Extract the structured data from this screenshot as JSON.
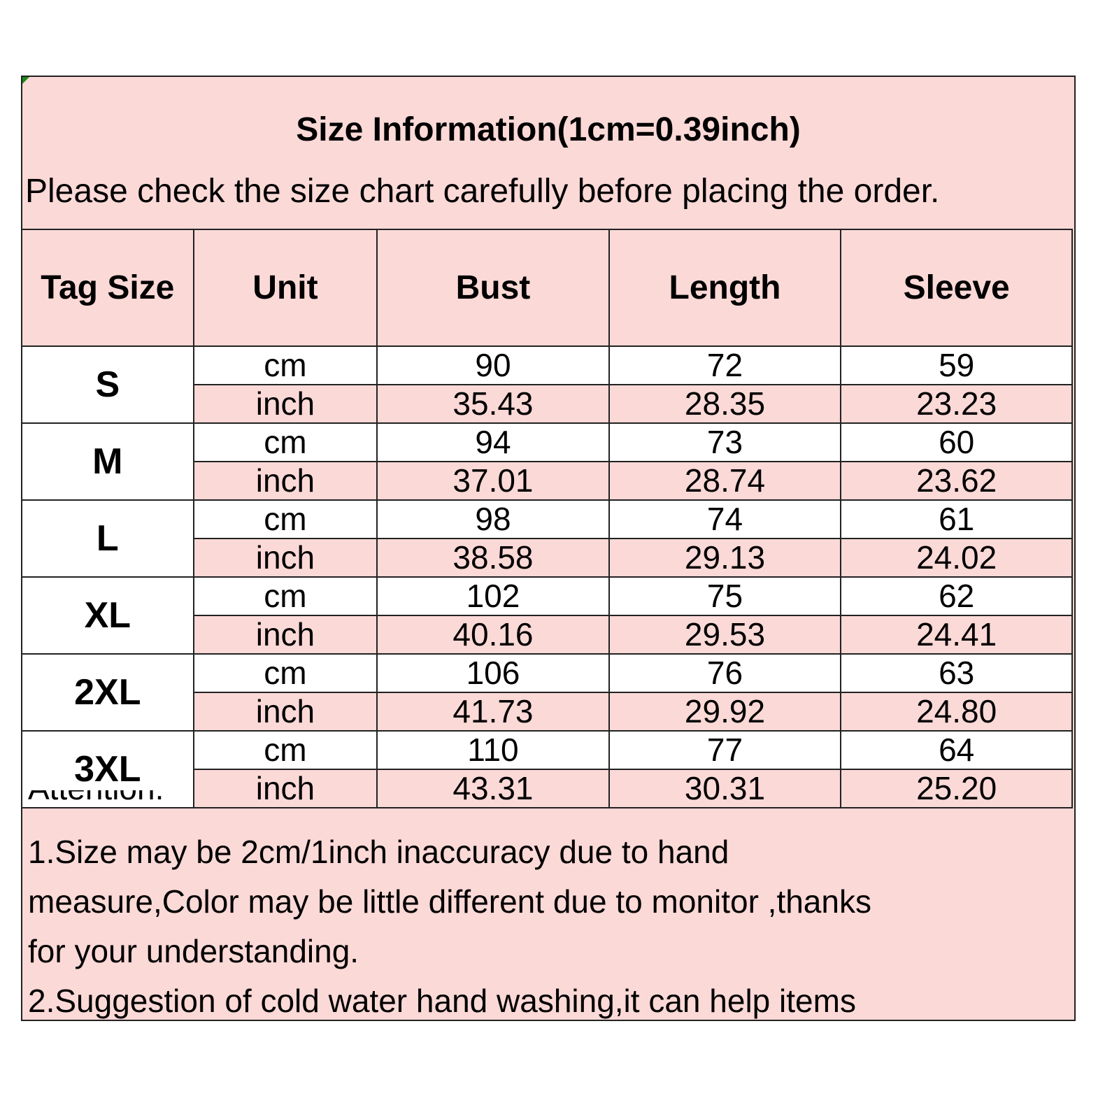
{
  "title": "Size Information(1cm=0.39inch)",
  "subtitle": "Please check the size chart carefully before placing the order.",
  "colors": {
    "header_bg": "#fbd9d7",
    "row_white": "#ffffff",
    "border": "#222222",
    "corner_marker": "#1a8a1a"
  },
  "columns": [
    "Tag Size",
    "Unit",
    "Bust",
    "Length",
    "Sleeve"
  ],
  "rows": [
    {
      "size": "S",
      "cm": {
        "unit": "cm",
        "bust": "90",
        "length": "72",
        "sleeve": "59"
      },
      "inch": {
        "unit": "inch",
        "bust": "35.43",
        "length": "28.35",
        "sleeve": "23.23"
      }
    },
    {
      "size": "M",
      "cm": {
        "unit": "cm",
        "bust": "94",
        "length": "73",
        "sleeve": "60"
      },
      "inch": {
        "unit": "inch",
        "bust": "37.01",
        "length": "28.74",
        "sleeve": "23.62"
      }
    },
    {
      "size": "L",
      "cm": {
        "unit": "cm",
        "bust": "98",
        "length": "74",
        "sleeve": "61"
      },
      "inch": {
        "unit": "inch",
        "bust": "38.58",
        "length": "29.13",
        "sleeve": "24.02"
      }
    },
    {
      "size": "XL",
      "cm": {
        "unit": "cm",
        "bust": "102",
        "length": "75",
        "sleeve": "62"
      },
      "inch": {
        "unit": "inch",
        "bust": "40.16",
        "length": "29.53",
        "sleeve": "24.41"
      }
    },
    {
      "size": "2XL",
      "cm": {
        "unit": "cm",
        "bust": "106",
        "length": "76",
        "sleeve": "63"
      },
      "inch": {
        "unit": "inch",
        "bust": "41.73",
        "length": "29.92",
        "sleeve": "24.80"
      }
    },
    {
      "size": "3XL",
      "cm": {
        "unit": "cm",
        "bust": "110",
        "length": "77",
        "sleeve": "64"
      },
      "inch": {
        "unit": "inch",
        "bust": "43.31",
        "length": "30.31",
        "sleeve": "25.20"
      }
    }
  ],
  "notes": {
    "heading": "Attention:",
    "lines": [
      "1.Size may be 2cm/1inch inaccuracy due to hand",
      "measure,Color may be little different due to monitor ,thanks",
      "for your understanding.",
      "2.Suggestion of cold water hand washing,it can help items"
    ]
  }
}
